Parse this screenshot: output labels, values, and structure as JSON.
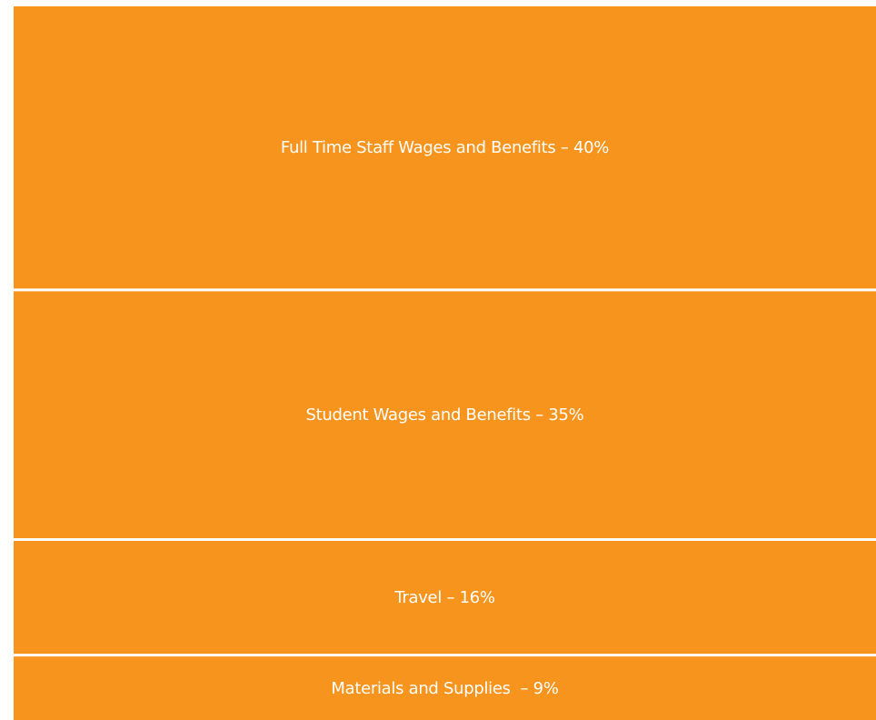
{
  "chart_data": {
    "type": "treemap",
    "color": "#f7941d",
    "values": [
      40,
      35,
      16,
      9
    ],
    "value_labels": [
      "Full Time Staff Wages and Benefits – 40%",
      "Student Wages and Benefits – 35%",
      "Travel – 16%",
      "Materials and Supplies  – 9%"
    ]
  }
}
